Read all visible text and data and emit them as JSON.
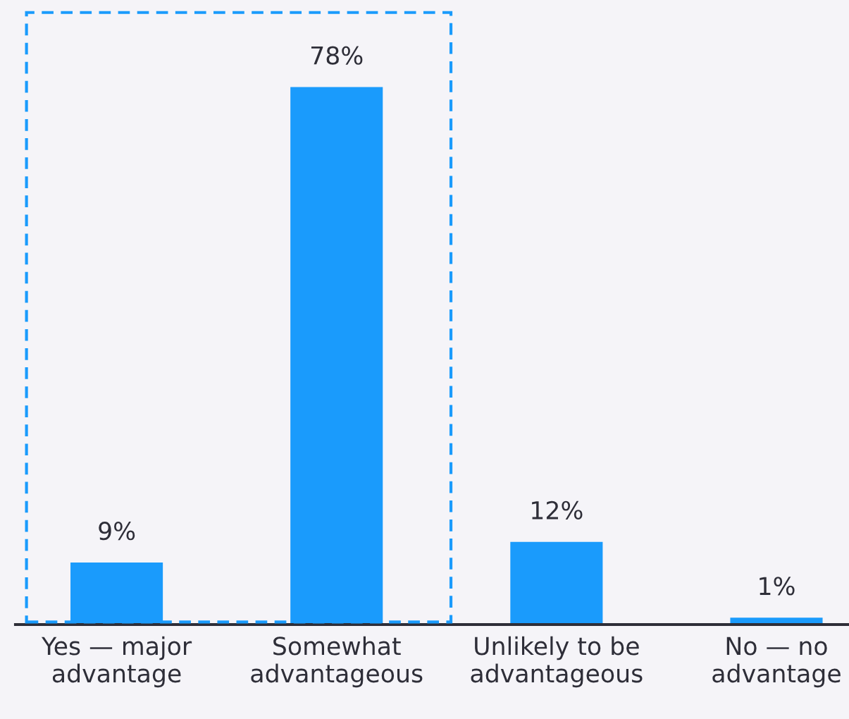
{
  "chart_data": {
    "type": "bar",
    "categories": [
      "Yes — major\nadvantage",
      "Somewhat\nadvantageous",
      "Unlikely to be\nadvantageous",
      "No — no\nadvantage"
    ],
    "values": [
      9,
      78,
      12,
      1
    ],
    "value_labels": [
      "9%",
      "78%",
      "12%",
      "1%"
    ],
    "color": "#1a9bfc",
    "grid": false
  }
}
